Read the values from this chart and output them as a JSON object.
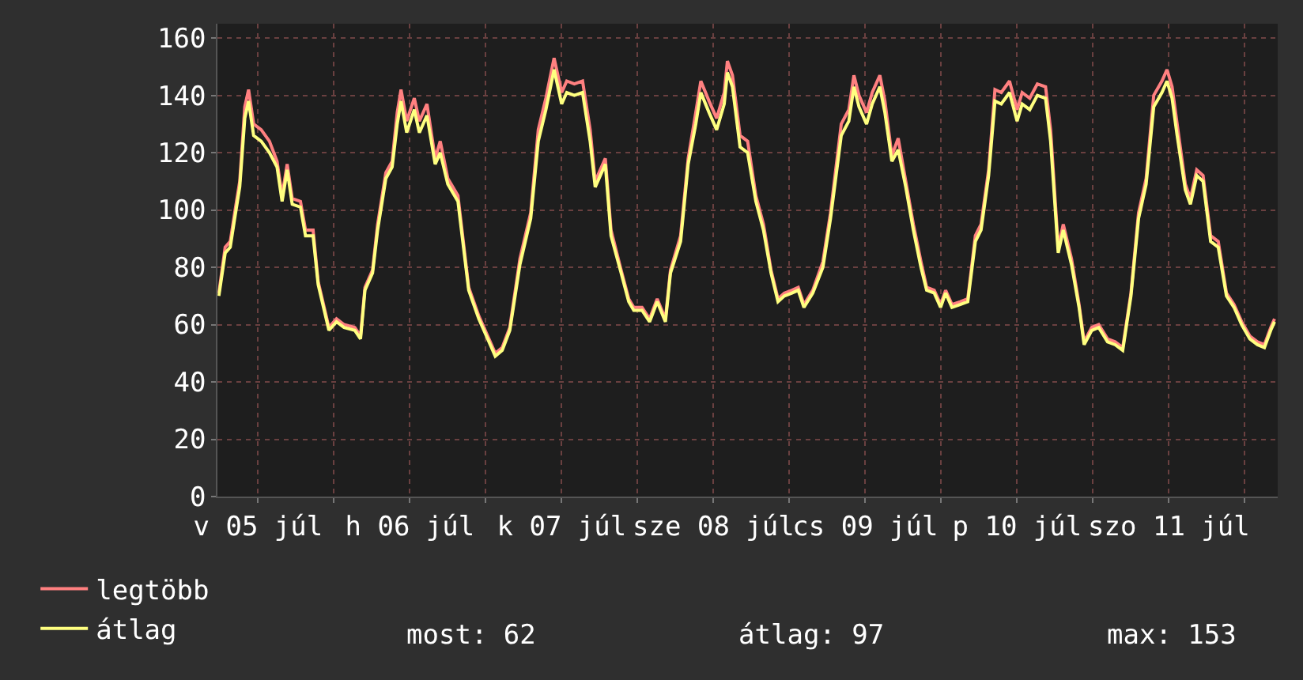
{
  "chart_data": {
    "type": "line",
    "x": [
      "--07-05T05:48",
      "--07-05T06:48",
      "--07-05T07:36",
      "--07-05T08:18",
      "--07-05T09:06",
      "--07-05T09:54",
      "--07-05T10:30",
      "--07-05T11:18",
      "--07-05T12:30",
      "--07-05T13:48",
      "--07-05T15:00",
      "--07-05T15:48",
      "--07-05T16:36",
      "--07-05T17:24",
      "--07-05T18:42",
      "--07-05T19:30",
      "--07-05T20:42",
      "--07-05T21:30",
      "--07-05T23:12",
      "--07-06T00:24",
      "--07-06T01:36",
      "--07-06T03:18",
      "--07-06T04:12",
      "--07-06T04:54",
      "--07-06T06:06",
      "--07-06T06:54",
      "--07-06T08:12",
      "--07-06T09:12",
      "--07-06T10:00",
      "--07-06T10:36",
      "--07-06T11:30",
      "--07-06T12:42",
      "--07-06T13:30",
      "--07-06T14:42",
      "--07-06T16:00",
      "--07-06T16:48",
      "--07-06T18:00",
      "--07-06T19:36",
      "--07-06T21:18",
      "--07-06T22:54",
      "--07-07T00:30",
      "--07-07T01:30",
      "--07-07T02:36",
      "--07-07T03:48",
      "--07-07T05:24",
      "--07-07T07:06",
      "--07-07T08:18",
      "--07-07T09:30",
      "--07-07T10:48",
      "--07-07T12:00",
      "--07-07T12:48",
      "--07-07T14:00",
      "--07-07T15:18",
      "--07-07T16:30",
      "--07-07T17:18",
      "--07-07T18:06",
      "--07-07T18:54",
      "--07-07T19:48",
      "--07-07T21:24",
      "--07-07T22:36",
      "--07-07T23:24",
      "--07-08T00:42",
      "--07-08T01:54",
      "--07-08T03:06",
      "--07-08T04:24",
      "--07-08T05:12",
      "--07-08T06:48",
      "--07-08T08:00",
      "--07-08T09:12",
      "--07-08T10:00",
      "--07-08T11:18",
      "--07-08T12:30",
      "--07-08T13:42",
      "--07-08T14:12",
      "--07-08T15:00",
      "--07-08T16:12",
      "--07-08T17:24",
      "--07-08T18:42",
      "--07-08T19:54",
      "--07-08T21:06",
      "--07-08T22:12",
      "--07-08T23:12",
      "--07-09T00:24",
      "--07-09T01:24",
      "--07-09T02:18",
      "--07-09T03:42",
      "--07-09T05:18",
      "--07-09T06:30",
      "--07-09T08:12",
      "--07-09T09:24",
      "--07-09T10:12",
      "--07-09T11:00",
      "--07-09T12:12",
      "--07-09T13:06",
      "--07-09T14:18",
      "--07-09T15:06",
      "--07-09T16:12",
      "--07-09T17:12",
      "--07-09T18:24",
      "--07-09T19:36",
      "--07-09T20:48",
      "--07-09T21:42",
      "--07-09T22:54",
      "--07-09T23:54",
      "--07-10T00:42",
      "--07-10T01:42",
      "--07-10T03:00",
      "--07-10T04:12",
      "--07-10T05:24",
      "--07-10T06:18",
      "--07-10T07:30",
      "--07-10T08:30",
      "--07-10T09:30",
      "--07-10T10:48",
      "--07-10T12:00",
      "--07-10T12:48",
      "--07-10T14:00",
      "--07-10T15:12",
      "--07-10T16:30",
      "--07-10T17:18",
      "--07-10T18:30",
      "--07-10T19:18",
      "--07-10T20:36",
      "--07-10T21:48",
      "--07-10T22:36",
      "--07-10T23:48",
      "--07-11T00:54",
      "--07-11T02:18",
      "--07-11T03:30",
      "--07-11T04:42",
      "--07-11T06:00",
      "--07-11T07:12",
      "--07-11T08:24",
      "--07-11T09:36",
      "--07-11T10:54",
      "--07-11T11:42",
      "--07-11T12:30",
      "--07-11T13:18",
      "--07-11T14:36",
      "--07-11T15:24",
      "--07-11T16:24",
      "--07-11T17:24",
      "--07-11T18:36",
      "--07-11T19:48",
      "--07-11T21:06",
      "--07-11T22:18",
      "--07-11T23:30",
      "--07-12T00:48",
      "--07-12T02:00",
      "--07-12T03:06",
      "--07-12T04:06",
      "--07-12T04:42"
    ],
    "series": [
      {
        "name": "legtöbb",
        "color": "#ff8080",
        "values": [
          71,
          87,
          89,
          99,
          110,
          136,
          142,
          130,
          128,
          124,
          117,
          105,
          116,
          104,
          103,
          93,
          93,
          75,
          59,
          62,
          60,
          59,
          56,
          73,
          79,
          95,
          113,
          117,
          134,
          142,
          131,
          139,
          131,
          137,
          118,
          124,
          111,
          105,
          73,
          63,
          55,
          50,
          52,
          59,
          83,
          99,
          128,
          139,
          153,
          141,
          145,
          144,
          145,
          128,
          110,
          114,
          118,
          93,
          79,
          69,
          66,
          66,
          62,
          69,
          62,
          79,
          91,
          118,
          134,
          145,
          138,
          132,
          141,
          152,
          147,
          126,
          124,
          105,
          95,
          79,
          69,
          71,
          72,
          73,
          67,
          72,
          82,
          99,
          130,
          135,
          147,
          140,
          134,
          141,
          147,
          138,
          119,
          125,
          110,
          95,
          82,
          73,
          72,
          67,
          72,
          67,
          68,
          69,
          91,
          95,
          114,
          142,
          141,
          145,
          135,
          141,
          139,
          144,
          143,
          128,
          87,
          95,
          83,
          67,
          54,
          59,
          60,
          55,
          54,
          52,
          71,
          99,
          111,
          140,
          145,
          149,
          143,
          130,
          109,
          104,
          114,
          112,
          91,
          89,
          71,
          67,
          61,
          56,
          54,
          53,
          59,
          62
        ]
      },
      {
        "name": "átlag",
        "color": "#ffff80",
        "values": [
          70,
          85,
          87,
          97,
          108,
          132,
          138,
          126,
          124,
          120,
          115,
          103,
          114,
          102,
          101,
          91,
          91,
          74,
          58,
          61,
          59,
          58,
          55,
          72,
          78,
          93,
          111,
          115,
          130,
          138,
          127,
          135,
          127,
          133,
          116,
          120,
          109,
          103,
          72,
          62,
          54,
          49,
          51,
          58,
          81,
          97,
          124,
          135,
          149,
          137,
          141,
          140,
          141,
          124,
          108,
          112,
          116,
          91,
          78,
          68,
          65,
          65,
          61,
          68,
          61,
          78,
          89,
          116,
          130,
          141,
          134,
          128,
          137,
          148,
          143,
          122,
          120,
          103,
          93,
          78,
          68,
          70,
          71,
          72,
          66,
          71,
          80,
          97,
          126,
          131,
          143,
          136,
          130,
          137,
          143,
          134,
          117,
          121,
          108,
          93,
          80,
          72,
          71,
          66,
          71,
          66,
          67,
          68,
          89,
          93,
          112,
          138,
          137,
          141,
          131,
          137,
          135,
          140,
          139,
          124,
          85,
          93,
          81,
          66,
          53,
          58,
          59,
          54,
          53,
          51,
          70,
          97,
          109,
          136,
          141,
          145,
          139,
          126,
          107,
          102,
          112,
          110,
          89,
          87,
          70,
          66,
          60,
          55,
          53,
          52,
          58,
          61
        ]
      }
    ],
    "xlim": [
      "--07-05T05:36",
      "--07-12T05:12"
    ],
    "xticks": [
      {
        "value": "--07-05T12:00",
        "label": "v 05 júl"
      },
      {
        "value": "--07-06T00:00",
        "label": null
      },
      {
        "value": "--07-06T12:00",
        "label": "h 06 júl"
      },
      {
        "value": "--07-07T00:00",
        "label": null
      },
      {
        "value": "--07-07T12:00",
        "label": "k 07 júl"
      },
      {
        "value": "--07-08T00:00",
        "label": null
      },
      {
        "value": "--07-08T12:00",
        "label": "sze 08 júl"
      },
      {
        "value": "--07-09T00:00",
        "label": null
      },
      {
        "value": "--07-09T12:00",
        "label": "cs 09 júl"
      },
      {
        "value": "--07-10T00:00",
        "label": null
      },
      {
        "value": "--07-10T12:00",
        "label": "p 10 júl"
      },
      {
        "value": "--07-11T00:00",
        "label": null
      },
      {
        "value": "--07-11T12:00",
        "label": "szo 11 júl"
      },
      {
        "value": "--07-12T00:00",
        "label": null
      }
    ],
    "ylim": [
      0,
      165
    ],
    "yticks": [
      0,
      20,
      40,
      60,
      80,
      100,
      120,
      140,
      160
    ],
    "grid": true,
    "legend": "bottom left",
    "line_style": "solid",
    "marker": "none",
    "annotations": [
      "most: 62",
      "átlag: 97",
      "max: 153"
    ]
  }
}
